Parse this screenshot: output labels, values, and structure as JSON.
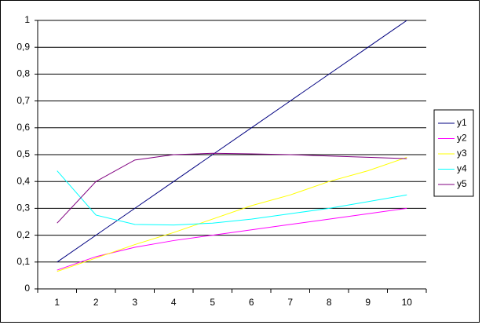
{
  "chart_data": {
    "type": "line",
    "categories": [
      "1",
      "2",
      "3",
      "4",
      "5",
      "6",
      "7",
      "8",
      "9",
      "10"
    ],
    "series": [
      {
        "name": "y1",
        "color": "#000080",
        "values": [
          0.1,
          0.2,
          0.3,
          0.4,
          0.5,
          0.6,
          0.7,
          0.8,
          0.9,
          1.0
        ]
      },
      {
        "name": "y2",
        "color": "#ff00ff",
        "values": [
          0.07,
          0.12,
          0.155,
          0.18,
          0.2,
          0.22,
          0.24,
          0.26,
          0.28,
          0.3
        ]
      },
      {
        "name": "y3",
        "color": "#ffff00",
        "values": [
          0.065,
          0.115,
          0.165,
          0.21,
          0.26,
          0.31,
          0.35,
          0.4,
          0.44,
          0.49
        ]
      },
      {
        "name": "y4",
        "color": "#00ffff",
        "values": [
          0.44,
          0.275,
          0.24,
          0.238,
          0.245,
          0.26,
          0.28,
          0.3,
          0.325,
          0.35
        ]
      },
      {
        "name": "y5",
        "color": "#800080",
        "values": [
          0.245,
          0.4,
          0.48,
          0.5,
          0.505,
          0.503,
          0.5,
          0.495,
          0.49,
          0.485
        ]
      }
    ],
    "ylim": [
      0,
      1
    ],
    "yticks": [
      0,
      {
        "value": 0.1,
        "label": "0,1"
      },
      {
        "value": 0.2,
        "label": "0,2"
      },
      {
        "value": 0.3,
        "label": "0,3"
      },
      {
        "value": 0.4,
        "label": "0,4"
      },
      {
        "value": 0.5,
        "label": "0,5"
      },
      {
        "value": 0.6,
        "label": "0,6"
      },
      {
        "value": 0.7,
        "label": "0,7"
      },
      {
        "value": 0.8,
        "label": "0,8"
      },
      {
        "value": 0.9,
        "label": "0,9"
      },
      1
    ],
    "grid": true,
    "legend": "right"
  }
}
